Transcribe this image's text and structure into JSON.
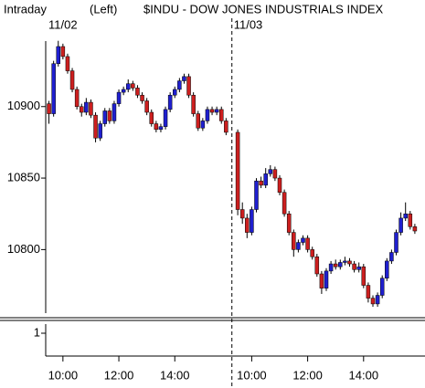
{
  "chart_data": {
    "type": "candlestick",
    "title_mode": "Intraday",
    "title_side": "(Left)",
    "title": "$INDU - DOW JONES INDUSTRIALS INDEX",
    "date_labels": [
      "11/02",
      "11/03"
    ],
    "categories": [
      null,
      null,
      null,
      "10:00",
      null,
      null,
      null,
      null,
      null,
      null,
      null,
      null,
      null,
      null,
      null,
      "12:00",
      null,
      null,
      null,
      null,
      null,
      null,
      null,
      null,
      null,
      null,
      null,
      "14:00",
      null,
      null,
      null,
      null,
      null,
      null,
      null,
      null,
      null,
      null,
      null,
      null,
      null,
      null,
      "10:00",
      null,
      null,
      null,
      null,
      null,
      null,
      null,
      null,
      null,
      null,
      null,
      "12:00",
      null,
      null,
      null,
      null,
      null,
      null,
      null,
      null,
      null,
      null,
      null,
      "14:00",
      null,
      null,
      null,
      null,
      null,
      null,
      null,
      null,
      null,
      null,
      null
    ],
    "open": [
      10902,
      10895,
      10930,
      10942,
      10935,
      10925,
      10912,
      10900,
      10896,
      10903,
      10894,
      10878,
      10888,
      10897,
      10890,
      10902,
      10910,
      10912,
      10916,
      10913,
      10908,
      10904,
      10896,
      10888,
      10884,
      10886,
      10898,
      10908,
      10912,
      10918,
      10921,
      10908,
      10895,
      10885,
      10890,
      10898,
      10896,
      10898,
      10890,
      10882,
      10828,
      10822,
      10812,
      10828,
      10848,
      10845,
      10853,
      10856,
      10850,
      10840,
      10825,
      10812,
      10800,
      10805,
      10808,
      10800,
      10795,
      10783,
      10773,
      10785,
      10790,
      10788,
      10791,
      10792,
      10790,
      10786,
      10788,
      10775,
      10766,
      10762,
      10768,
      10780,
      10792,
      10798,
      10812,
      10822,
      10825,
      10816
    ],
    "high": [
      10904,
      10932,
      10946,
      10944,
      10937,
      10927,
      10914,
      10902,
      10906,
      10905,
      10896,
      10890,
      10899,
      10899,
      10904,
      10912,
      10914,
      10919,
      10918,
      10915,
      10910,
      10906,
      10898,
      10890,
      10888,
      10900,
      10910,
      10914,
      10920,
      10923,
      10923,
      10910,
      10897,
      10892,
      10900,
      10900,
      10900,
      10900,
      10892,
      10884,
      10833,
      10825,
      10830,
      10850,
      10851,
      10857,
      10859,
      10858,
      10852,
      10842,
      10827,
      10814,
      10807,
      10810,
      10810,
      10802,
      10797,
      10785,
      10787,
      10792,
      10793,
      10793,
      10795,
      10794,
      10792,
      10791,
      10790,
      10777,
      10768,
      10770,
      10782,
      10794,
      10800,
      10814,
      10826,
      10833,
      10827,
      10818
    ],
    "low": [
      10888,
      10893,
      10928,
      10933,
      10923,
      10910,
      10898,
      10893,
      10894,
      10892,
      10875,
      10876,
      10886,
      10888,
      10888,
      10900,
      10908,
      10910,
      10911,
      10906,
      10902,
      10894,
      10886,
      10882,
      10882,
      10884,
      10896,
      10906,
      10910,
      10916,
      10906,
      10893,
      10883,
      10883,
      10888,
      10894,
      10894,
      10888,
      10880,
      10824,
      10818,
      10808,
      10810,
      10826,
      10843,
      10843,
      10851,
      10848,
      10838,
      10823,
      10810,
      10795,
      10798,
      10803,
      10798,
      10793,
      10781,
      10769,
      10771,
      10783,
      10786,
      10786,
      10789,
      10788,
      10784,
      10784,
      10773,
      10763,
      10760,
      10760,
      10766,
      10778,
      10790,
      10796,
      10810,
      10820,
      10814,
      10811
    ],
    "close": [
      10895,
      10930,
      10942,
      10935,
      10925,
      10912,
      10900,
      10896,
      10903,
      10894,
      10878,
      10888,
      10897,
      10890,
      10902,
      10910,
      10912,
      10916,
      10913,
      10908,
      10904,
      10896,
      10888,
      10884,
      10886,
      10898,
      10908,
      10912,
      10918,
      10921,
      10908,
      10895,
      10885,
      10890,
      10898,
      10896,
      10898,
      10890,
      10882,
      10828,
      10822,
      10812,
      10828,
      10848,
      10845,
      10853,
      10856,
      10850,
      10840,
      10825,
      10812,
      10800,
      10805,
      10808,
      10800,
      10795,
      10783,
      10773,
      10785,
      10790,
      10788,
      10791,
      10792,
      10790,
      10786,
      10788,
      10775,
      10766,
      10762,
      10768,
      10780,
      10792,
      10798,
      10812,
      10822,
      10825,
      10816,
      10813
    ],
    "up_color": "#1f1fcf",
    "down_color": "#cc1f1f",
    "ylim": [
      10753,
      10949
    ],
    "yticks": [
      10800,
      10850,
      10900
    ],
    "lower_ylim": [
      0,
      1.4
    ],
    "lower_yticks": [
      1
    ]
  }
}
